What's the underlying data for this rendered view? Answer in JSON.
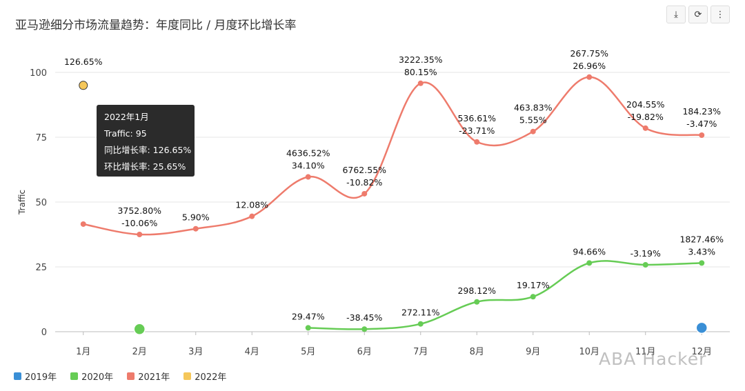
{
  "title": "亚马逊细分市场流量趋势：年度同比 / 月度环比增长率",
  "toolbar": {
    "icons": [
      "download-icon",
      "refresh-icon",
      "more-icon"
    ]
  },
  "tooltip": {
    "heading": "2022年1月",
    "traffic": "Traffic: 95",
    "yoy": "同比增长率: 126.65%",
    "mom": "环比增长率: 25.65%"
  },
  "watermark": "ABA Hacker",
  "chart_data": {
    "type": "line",
    "categories": [
      "1月",
      "2月",
      "3月",
      "4月",
      "5月",
      "6月",
      "7月",
      "8月",
      "9月",
      "10月",
      "11月",
      "12月"
    ],
    "ylabel": "Traffic",
    "ylim": [
      0,
      100
    ],
    "yticks": [
      0,
      25,
      50,
      75,
      100
    ],
    "grid": true,
    "legend_position": "bottom-left",
    "series": [
      {
        "name": "2019年",
        "color": "#3a8fd6",
        "values": [
          null,
          null,
          null,
          null,
          null,
          null,
          null,
          null,
          null,
          null,
          null,
          1.5
        ],
        "yoy": [
          null,
          null,
          null,
          null,
          null,
          null,
          null,
          null,
          null,
          null,
          null,
          null
        ],
        "mom": [
          null,
          null,
          null,
          null,
          null,
          null,
          null,
          null,
          null,
          null,
          null,
          null
        ]
      },
      {
        "name": "2020年",
        "color": "#66cc55",
        "values": [
          null,
          1,
          null,
          null,
          1.5,
          1,
          3,
          11.5,
          13.5,
          26.5,
          25.8,
          26.5
        ],
        "yoy": [
          null,
          null,
          null,
          null,
          null,
          null,
          null,
          null,
          null,
          null,
          null,
          "1827.46%"
        ],
        "mom": [
          null,
          null,
          null,
          null,
          "29.47%",
          "-38.45%",
          "272.11%",
          "298.12%",
          "19.17%",
          "94.66%",
          "-3.19%",
          "3.43%"
        ]
      },
      {
        "name": "2021年",
        "color": "#ee7b6c",
        "values": [
          41.5,
          37.5,
          39.7,
          44.5,
          59.7,
          53.2,
          95.8,
          73.2,
          77.2,
          98.2,
          78.5,
          75.8
        ],
        "yoy": [
          null,
          "3752.80%",
          null,
          null,
          "4636.52%",
          "6762.55%",
          "3222.35%",
          "536.61%",
          "463.83%",
          "267.75%",
          "204.55%",
          "184.23%"
        ],
        "mom": [
          null,
          "-10.06%",
          "5.90%",
          "12.08%",
          "34.10%",
          "-10.82%",
          "80.15%",
          "-23.71%",
          "5.55%",
          "26.96%",
          "-19.82%",
          "-3.47%"
        ]
      },
      {
        "name": "2022年",
        "color": "#f5c75a",
        "values": [
          95,
          null,
          null,
          null,
          null,
          null,
          null,
          null,
          null,
          null,
          null,
          null
        ],
        "yoy": [
          "126.65%",
          null,
          null,
          null,
          null,
          null,
          null,
          null,
          null,
          null,
          null,
          null
        ],
        "mom": [
          null,
          null,
          null,
          null,
          null,
          null,
          null,
          null,
          null,
          null,
          null,
          null
        ]
      }
    ]
  }
}
